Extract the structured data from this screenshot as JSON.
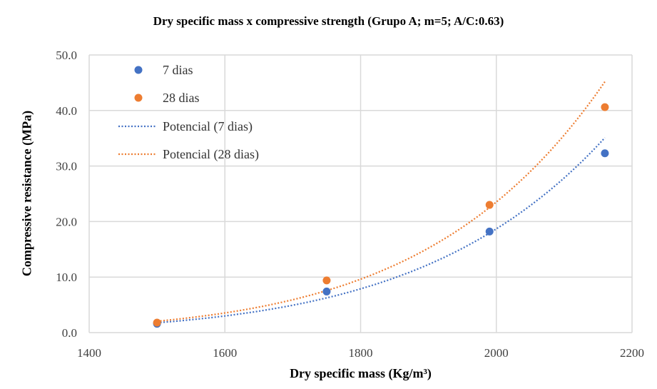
{
  "chart_data": {
    "type": "scatter",
    "title": "Dry specific mass x compressive strength (Grupo A; m=5; A/C:0.63)",
    "xlabel": "Dry specific mass (Kg/m³)",
    "ylabel": "Compressive resistance (MPa)",
    "xlim": [
      1400,
      2200
    ],
    "ylim": [
      0,
      50
    ],
    "xticks": [
      "1400",
      "1600",
      "1800",
      "2000",
      "2200"
    ],
    "yticks": [
      "0.0",
      "10.0",
      "20.0",
      "30.0",
      "40.0",
      "50.0"
    ],
    "grid": true,
    "legend_position": "top-left",
    "series": [
      {
        "name": "7 dias",
        "color": "#4472C4",
        "x": [
          1500,
          1750,
          1990,
          2160
        ],
        "y": [
          1.6,
          7.4,
          18.2,
          32.3
        ]
      },
      {
        "name": "28 dias",
        "color": "#ED7D31",
        "x": [
          1500,
          1750,
          1990,
          2160
        ],
        "y": [
          1.8,
          9.4,
          23.0,
          40.6
        ]
      }
    ],
    "trendlines": [
      {
        "name": "Potencial (7 dias)",
        "type": "power",
        "color": "#4472C4",
        "of": 0
      },
      {
        "name": "Potencial (28 dias)",
        "type": "power",
        "color": "#ED7D31",
        "of": 1
      }
    ]
  }
}
